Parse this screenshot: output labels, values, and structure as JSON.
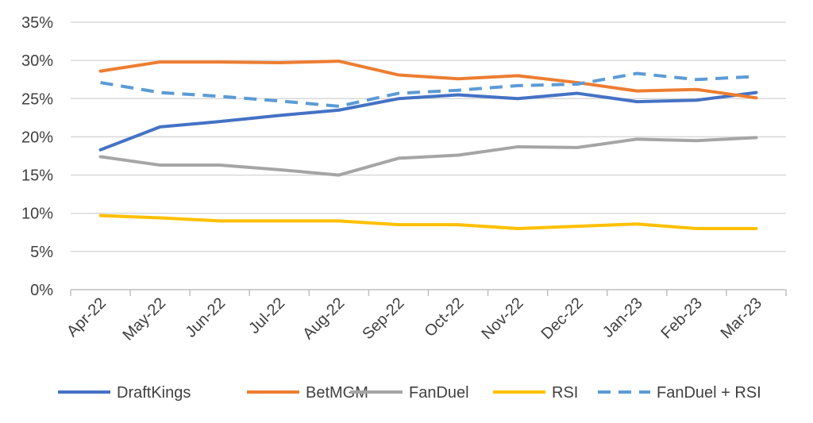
{
  "chart_data": {
    "type": "line",
    "title": "",
    "xlabel": "",
    "ylabel": "",
    "ylim": [
      0,
      35
    ],
    "yticks": [
      "0%",
      "5%",
      "10%",
      "15%",
      "20%",
      "25%",
      "30%",
      "35%"
    ],
    "ytick_values": [
      0,
      5,
      10,
      15,
      20,
      25,
      30,
      35
    ],
    "grid": true,
    "legend_position": "bottom",
    "categories": [
      "Apr-22",
      "May-22",
      "Jun-22",
      "Jul-22",
      "Aug-22",
      "Sep-22",
      "Oct-22",
      "Nov-22",
      "Dec-22",
      "Jan-23",
      "Feb-23",
      "Mar-23"
    ],
    "series": [
      {
        "name": "DraftKings",
        "color": "#4472C4",
        "dashed": false,
        "values": [
          18.3,
          21.3,
          22.0,
          22.8,
          23.5,
          25.0,
          25.5,
          25.0,
          25.7,
          24.6,
          24.8,
          25.8
        ]
      },
      {
        "name": "BetMGM",
        "color": "#ED7D31",
        "dashed": false,
        "values": [
          28.6,
          29.8,
          29.8,
          29.7,
          29.9,
          28.1,
          27.6,
          28.0,
          27.1,
          26.0,
          26.2,
          25.1
        ]
      },
      {
        "name": "FanDuel",
        "color": "#A5A5A5",
        "dashed": false,
        "values": [
          17.4,
          16.3,
          16.3,
          15.7,
          15.0,
          17.2,
          17.6,
          18.7,
          18.6,
          19.7,
          19.5,
          19.9
        ]
      },
      {
        "name": "RSI",
        "color": "#FFC000",
        "dashed": false,
        "values": [
          9.7,
          9.4,
          9.0,
          9.0,
          9.0,
          8.5,
          8.5,
          8.0,
          8.3,
          8.6,
          8.0,
          8.0
        ]
      },
      {
        "name": "FanDuel + RSI",
        "color": "#5B9BD5",
        "dashed": true,
        "values": [
          27.1,
          25.8,
          25.3,
          24.7,
          24.0,
          25.7,
          26.1,
          26.7,
          26.9,
          28.3,
          27.5,
          27.9
        ]
      }
    ]
  }
}
